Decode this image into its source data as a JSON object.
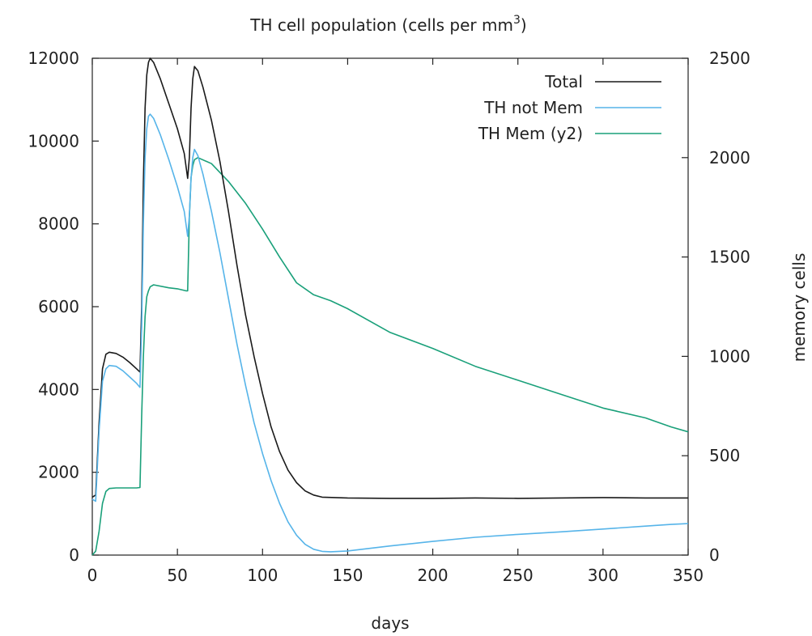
{
  "chart_data": {
    "type": "line",
    "title": "TH cell population (cells per mm",
    "title_sup": "3",
    "title_end": ")",
    "xlabel": "days",
    "y2label": "memory cells",
    "xlim": [
      0,
      350
    ],
    "ylim": [
      0,
      12000
    ],
    "y2lim": [
      0,
      2500
    ],
    "x_ticks": [
      0,
      50,
      100,
      150,
      200,
      250,
      300,
      350
    ],
    "y_ticks": [
      0,
      2000,
      4000,
      6000,
      8000,
      10000,
      12000
    ],
    "y2_ticks": [
      0,
      500,
      1000,
      1500,
      2000,
      2500
    ],
    "grid": false,
    "legend_position": "top-right",
    "series": [
      {
        "name": "Total",
        "axis": "y",
        "color": "#1a1a1a",
        "points": [
          [
            0,
            1400
          ],
          [
            2,
            1450
          ],
          [
            4,
            3200
          ],
          [
            6,
            4500
          ],
          [
            8,
            4850
          ],
          [
            10,
            4900
          ],
          [
            14,
            4870
          ],
          [
            18,
            4780
          ],
          [
            22,
            4650
          ],
          [
            26,
            4500
          ],
          [
            28,
            4420
          ],
          [
            29,
            6000
          ],
          [
            30,
            9000
          ],
          [
            31,
            10800
          ],
          [
            32,
            11600
          ],
          [
            33,
            11900
          ],
          [
            34,
            12000
          ],
          [
            36,
            11900
          ],
          [
            40,
            11500
          ],
          [
            45,
            10900
          ],
          [
            50,
            10300
          ],
          [
            54,
            9700
          ],
          [
            56,
            9100
          ],
          [
            57,
            9600
          ],
          [
            58,
            10800
          ],
          [
            59,
            11500
          ],
          [
            60,
            11800
          ],
          [
            62,
            11700
          ],
          [
            65,
            11300
          ],
          [
            70,
            10500
          ],
          [
            75,
            9500
          ],
          [
            80,
            8300
          ],
          [
            85,
            7000
          ],
          [
            90,
            5800
          ],
          [
            95,
            4800
          ],
          [
            100,
            3900
          ],
          [
            105,
            3100
          ],
          [
            110,
            2500
          ],
          [
            115,
            2050
          ],
          [
            120,
            1750
          ],
          [
            125,
            1550
          ],
          [
            130,
            1450
          ],
          [
            135,
            1400
          ],
          [
            150,
            1380
          ],
          [
            175,
            1370
          ],
          [
            200,
            1370
          ],
          [
            225,
            1380
          ],
          [
            250,
            1370
          ],
          [
            275,
            1380
          ],
          [
            300,
            1390
          ],
          [
            325,
            1380
          ],
          [
            350,
            1380
          ]
        ]
      },
      {
        "name": "TH not Mem",
        "axis": "y",
        "color": "#56b4e9",
        "points": [
          [
            0,
            1350
          ],
          [
            2,
            1300
          ],
          [
            4,
            3000
          ],
          [
            6,
            4200
          ],
          [
            8,
            4500
          ],
          [
            10,
            4580
          ],
          [
            14,
            4560
          ],
          [
            18,
            4450
          ],
          [
            22,
            4300
          ],
          [
            26,
            4150
          ],
          [
            28,
            4050
          ],
          [
            29,
            5500
          ],
          [
            30,
            8000
          ],
          [
            31,
            9600
          ],
          [
            32,
            10300
          ],
          [
            33,
            10600
          ],
          [
            34,
            10650
          ],
          [
            36,
            10550
          ],
          [
            40,
            10150
          ],
          [
            45,
            9550
          ],
          [
            50,
            8900
          ],
          [
            54,
            8300
          ],
          [
            56,
            7700
          ],
          [
            57,
            8200
          ],
          [
            58,
            9100
          ],
          [
            59,
            9600
          ],
          [
            60,
            9800
          ],
          [
            62,
            9650
          ],
          [
            65,
            9200
          ],
          [
            70,
            8300
          ],
          [
            75,
            7300
          ],
          [
            80,
            6200
          ],
          [
            85,
            5100
          ],
          [
            90,
            4100
          ],
          [
            95,
            3200
          ],
          [
            100,
            2450
          ],
          [
            105,
            1800
          ],
          [
            110,
            1250
          ],
          [
            115,
            800
          ],
          [
            120,
            480
          ],
          [
            125,
            260
          ],
          [
            130,
            140
          ],
          [
            135,
            90
          ],
          [
            140,
            80
          ],
          [
            150,
            100
          ],
          [
            175,
            220
          ],
          [
            200,
            330
          ],
          [
            225,
            430
          ],
          [
            250,
            500
          ],
          [
            275,
            560
          ],
          [
            300,
            630
          ],
          [
            325,
            700
          ],
          [
            340,
            740
          ],
          [
            350,
            760
          ]
        ]
      },
      {
        "name": "TH Mem (y2)",
        "axis": "y2",
        "color": "#1aa07a",
        "points": [
          [
            0,
            0
          ],
          [
            2,
            20
          ],
          [
            4,
            120
          ],
          [
            6,
            260
          ],
          [
            8,
            320
          ],
          [
            10,
            335
          ],
          [
            14,
            338
          ],
          [
            20,
            338
          ],
          [
            26,
            338
          ],
          [
            28,
            340
          ],
          [
            29,
            700
          ],
          [
            30,
            1000
          ],
          [
            31,
            1200
          ],
          [
            32,
            1300
          ],
          [
            33,
            1330
          ],
          [
            34,
            1350
          ],
          [
            36,
            1360
          ],
          [
            45,
            1345
          ],
          [
            50,
            1340
          ],
          [
            55,
            1330
          ],
          [
            56,
            1330
          ],
          [
            57,
            1700
          ],
          [
            58,
            1900
          ],
          [
            59,
            1960
          ],
          [
            60,
            1990
          ],
          [
            62,
            2000
          ],
          [
            70,
            1970
          ],
          [
            80,
            1880
          ],
          [
            90,
            1770
          ],
          [
            100,
            1640
          ],
          [
            110,
            1500
          ],
          [
            120,
            1370
          ],
          [
            130,
            1310
          ],
          [
            140,
            1280
          ],
          [
            150,
            1240
          ],
          [
            175,
            1120
          ],
          [
            200,
            1040
          ],
          [
            225,
            950
          ],
          [
            250,
            880
          ],
          [
            275,
            810
          ],
          [
            300,
            740
          ],
          [
            325,
            690
          ],
          [
            340,
            645
          ],
          [
            350,
            620
          ]
        ]
      }
    ]
  }
}
